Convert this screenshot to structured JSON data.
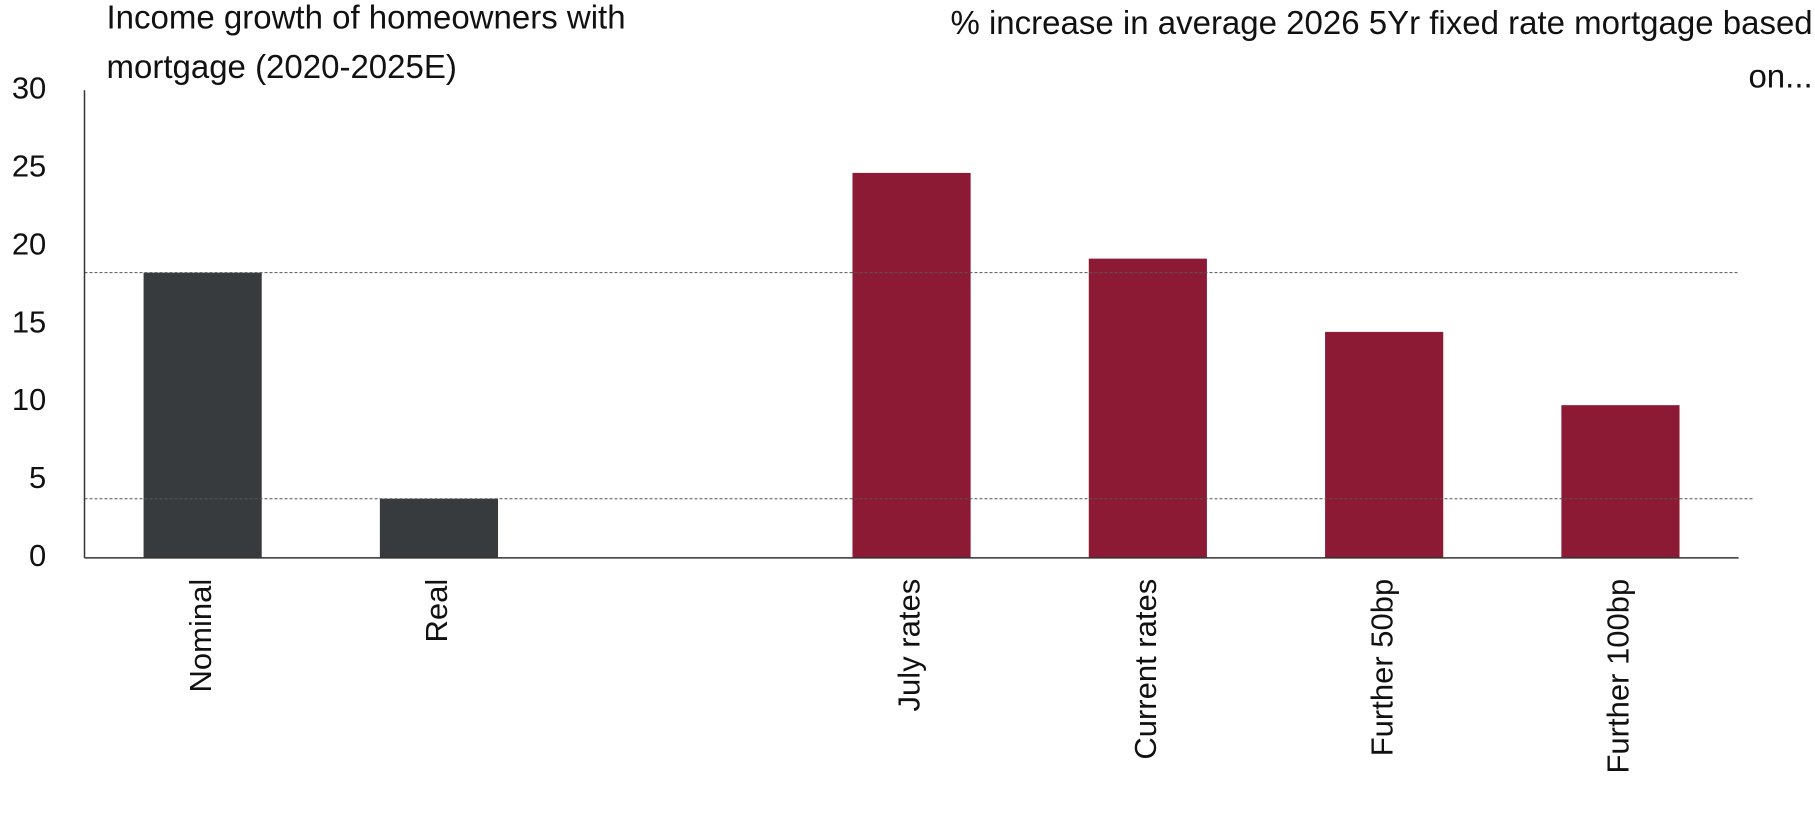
{
  "chart_data": {
    "type": "bar",
    "title_left": [
      "Income growth of homeowners with",
      "mortgage (2020-2025E)"
    ],
    "title_right": [
      "% increase in average 2026 5Yr fixed rate mortgage based",
      "on..."
    ],
    "categories": [
      "Nominal",
      "Real",
      null,
      "July rates",
      "Current rates",
      "Further 50bp",
      "Further 100bp"
    ],
    "values": [
      18.3,
      3.8,
      null,
      24.7,
      19.2,
      14.5,
      9.8
    ],
    "colors": [
      "#383b3e",
      "#383b3e",
      null,
      "#8c1a35",
      "#8c1a35",
      "#8c1a35",
      "#8c1a35"
    ],
    "ylim": [
      0,
      30
    ],
    "yticks": [
      0,
      5,
      10,
      15,
      20,
      25,
      30
    ],
    "reference_lines": [
      18.3,
      3.8
    ]
  }
}
